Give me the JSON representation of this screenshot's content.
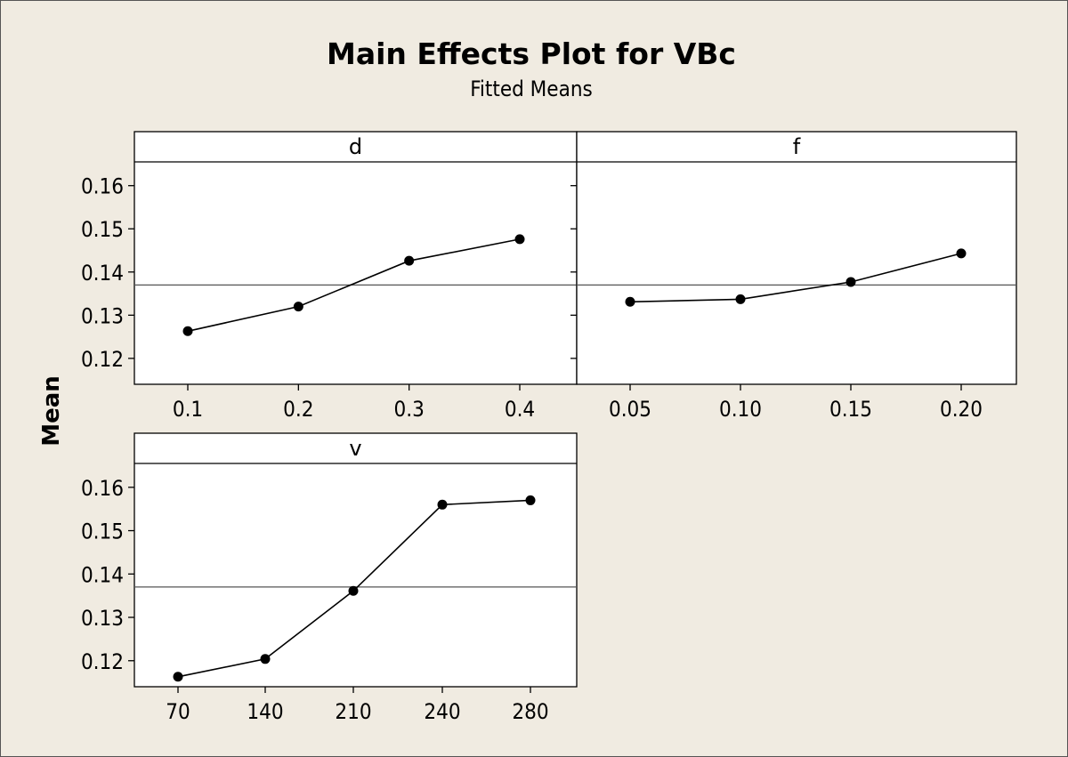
{
  "chart_data": {
    "type": "line",
    "title": "Main Effects Plot for VBc",
    "subtitle": "Fitted Means",
    "ylabel": "Mean",
    "ylim": [
      0.114,
      0.1655
    ],
    "yticks": [
      "0.12",
      "0.13",
      "0.14",
      "0.15",
      "0.16"
    ],
    "overall_mean": 0.137,
    "grid": false,
    "panels": [
      {
        "name": "d",
        "x": [
          "0.1",
          "0.2",
          "0.3",
          "0.4"
        ],
        "values": [
          0.1263,
          0.132,
          0.1426,
          0.1476
        ]
      },
      {
        "name": "f",
        "x": [
          "0.05",
          "0.10",
          "0.15",
          "0.20"
        ],
        "values": [
          0.1331,
          0.1337,
          0.1377,
          0.1443
        ]
      },
      {
        "name": "v",
        "x": [
          "70",
          "140",
          "210",
          "240",
          "280"
        ],
        "values": [
          0.1163,
          0.1204,
          0.1361,
          0.156,
          0.157
        ]
      }
    ]
  },
  "colors": {
    "background": "#f0ebe1",
    "panel": "#ffffff",
    "line": "#000000",
    "mean_line": "#555555"
  }
}
